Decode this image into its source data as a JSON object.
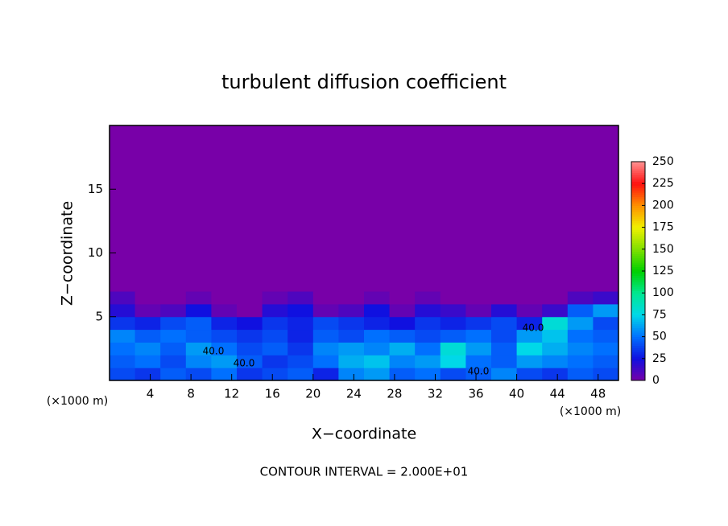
{
  "chart_data": {
    "type": "heatmap",
    "title": "turbulent diffusion coefficient",
    "x_label": "X−coordinate",
    "y_label": "Z−coordinate",
    "x_unit_left": "(×1000 m)",
    "x_unit_right": "(×1000 m)",
    "footer": "CONTOUR INTERVAL = 2.000E+01",
    "xlim": [
      0,
      50
    ],
    "xticks": [
      4,
      8,
      12,
      16,
      20,
      24,
      28,
      32,
      36,
      40,
      44,
      48
    ],
    "ylim": [
      0,
      20
    ],
    "yticks": [
      5,
      10,
      15
    ],
    "x_bins": [
      0,
      2.5,
      5,
      7.5,
      10,
      12.5,
      15,
      17.5,
      20,
      22.5,
      25,
      27.5,
      30,
      32.5,
      35,
      37.5,
      40,
      42.5,
      45,
      47.5,
      50
    ],
    "y_bins": [
      0,
      1,
      2,
      3,
      4,
      5,
      6,
      7,
      20
    ],
    "z": [
      [
        40,
        35,
        45,
        40,
        50,
        35,
        40,
        45,
        30,
        55,
        60,
        45,
        50,
        40,
        45,
        55,
        40,
        35,
        45,
        40
      ],
      [
        45,
        50,
        40,
        55,
        60,
        45,
        35,
        40,
        50,
        65,
        70,
        55,
        60,
        75,
        50,
        45,
        60,
        55,
        50,
        45
      ],
      [
        50,
        55,
        45,
        60,
        50,
        40,
        45,
        35,
        55,
        60,
        55,
        65,
        50,
        80,
        60,
        45,
        75,
        65,
        55,
        50
      ],
      [
        55,
        45,
        50,
        45,
        40,
        35,
        40,
        30,
        45,
        40,
        50,
        45,
        40,
        45,
        50,
        40,
        60,
        70,
        50,
        45
      ],
      [
        35,
        30,
        40,
        45,
        30,
        25,
        35,
        30,
        40,
        35,
        30,
        25,
        35,
        30,
        35,
        40,
        30,
        80,
        60,
        40
      ],
      [
        20,
        5,
        10,
        25,
        5,
        0,
        20,
        25,
        5,
        10,
        25,
        5,
        20,
        15,
        5,
        20,
        5,
        15,
        45,
        60
      ],
      [
        10,
        0,
        0,
        5,
        0,
        0,
        5,
        10,
        0,
        0,
        5,
        0,
        5,
        0,
        0,
        0,
        0,
        0,
        10,
        15
      ],
      [
        0,
        0,
        0,
        0,
        0,
        0,
        0,
        0,
        0,
        0,
        0,
        0,
        0,
        0,
        0,
        0,
        0,
        0,
        0,
        0
      ]
    ],
    "zlim": [
      0,
      250
    ],
    "zticks": [
      0,
      25,
      50,
      75,
      100,
      125,
      150,
      175,
      200,
      225,
      250
    ],
    "colorscale": [
      "#7800a8",
      "#1010e0",
      "#0070ff",
      "#00d8e8",
      "#00e890",
      "#00d000",
      "#80e000",
      "#f0f000",
      "#ff9000",
      "#ff1010",
      "#ff9090"
    ],
    "contour_labels": [
      {
        "value": 40,
        "label": "40.0"
      },
      {
        "value": 40,
        "label": "40.0"
      },
      {
        "value": 40,
        "label": "40.0"
      },
      {
        "value": 40,
        "label": "40.0"
      }
    ]
  }
}
